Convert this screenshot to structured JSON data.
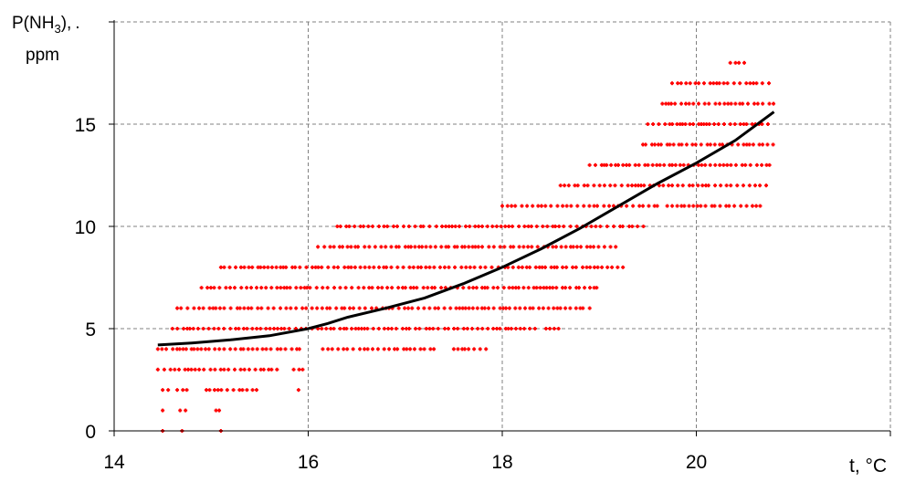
{
  "chart_data": {
    "type": "scatter",
    "title": "",
    "ylabel": {
      "lines": [
        {
          "prefix": "P(NH",
          "sub": "3",
          "suffix": "),",
          "dot": "."
        },
        "ppm"
      ]
    },
    "xlabel": "t, °C",
    "xlim": [
      14,
      22
    ],
    "ylim": [
      0,
      20
    ],
    "xticks": [
      14,
      16,
      18,
      20
    ],
    "yticks": [
      0,
      5,
      10,
      15
    ],
    "xtick_labels": [
      "14",
      "16",
      "18",
      "20"
    ],
    "ytick_labels": [
      "0",
      "5",
      "10",
      "15"
    ],
    "grid": true,
    "legend": "none",
    "colors": {
      "points": "#ff0000",
      "trend": "#000000",
      "grid": "#808080",
      "axis": "#000000"
    },
    "series": [
      {
        "kind": "scatter",
        "point_ranges": [
          {
            "y": 0,
            "x": [
              [
                14.5,
                14.52
              ],
              [
                14.7,
                14.72
              ],
              [
                15.1,
                15.15
              ]
            ]
          },
          {
            "y": 1,
            "x": [
              [
                14.5,
                14.55
              ],
              [
                14.68,
                14.75
              ],
              [
                15.05,
                15.12
              ]
            ]
          },
          {
            "y": 2,
            "x": [
              [
                14.5,
                14.56
              ],
              [
                14.65,
                14.8
              ],
              [
                14.95,
                15.5
              ],
              [
                15.9,
                15.93
              ]
            ]
          },
          {
            "y": 3,
            "x": [
              [
                14.45,
                15.7
              ],
              [
                15.85,
                15.95
              ]
            ]
          },
          {
            "y": 4,
            "x": [
              [
                14.45,
                15.95
              ],
              [
                16.15,
                17.3
              ],
              [
                17.5,
                17.85
              ]
            ]
          },
          {
            "y": 5,
            "x": [
              [
                14.6,
                18.35
              ],
              [
                18.45,
                18.6
              ]
            ]
          },
          {
            "y": 6,
            "x": [
              [
                14.65,
                18.95
              ]
            ]
          },
          {
            "y": 7,
            "x": [
              [
                14.9,
                19.0
              ]
            ]
          },
          {
            "y": 8,
            "x": [
              [
                15.1,
                19.25
              ]
            ]
          },
          {
            "y": 9,
            "x": [
              [
                16.1,
                19.2
              ]
            ]
          },
          {
            "y": 10,
            "x": [
              [
                16.3,
                19.5
              ]
            ]
          },
          {
            "y": 11,
            "x": [
              [
                18.0,
                19.6
              ],
              [
                19.7,
                20.7
              ]
            ]
          },
          {
            "y": 12,
            "x": [
              [
                18.6,
                20.75
              ]
            ]
          },
          {
            "y": 13,
            "x": [
              [
                18.9,
                20.8
              ]
            ]
          },
          {
            "y": 14,
            "x": [
              [
                19.45,
                20.8
              ]
            ]
          },
          {
            "y": 15,
            "x": [
              [
                19.5,
                20.8
              ]
            ]
          },
          {
            "y": 16,
            "x": [
              [
                19.65,
                20.8
              ]
            ]
          },
          {
            "y": 17,
            "x": [
              [
                19.75,
                20.8
              ]
            ]
          },
          {
            "y": 18,
            "x": [
              [
                20.35,
                20.5
              ]
            ]
          }
        ]
      },
      {
        "kind": "line",
        "x": [
          14.45,
          14.8,
          15.2,
          15.6,
          16.0,
          16.2,
          16.4,
          16.8,
          17.2,
          17.6,
          18.0,
          18.4,
          18.8,
          19.2,
          19.6,
          20.0,
          20.4,
          20.8
        ],
        "y": [
          4.2,
          4.3,
          4.45,
          4.65,
          5.0,
          5.25,
          5.55,
          6.0,
          6.5,
          7.2,
          8.0,
          8.9,
          9.9,
          11.0,
          12.1,
          13.1,
          14.2,
          15.6
        ]
      }
    ]
  }
}
